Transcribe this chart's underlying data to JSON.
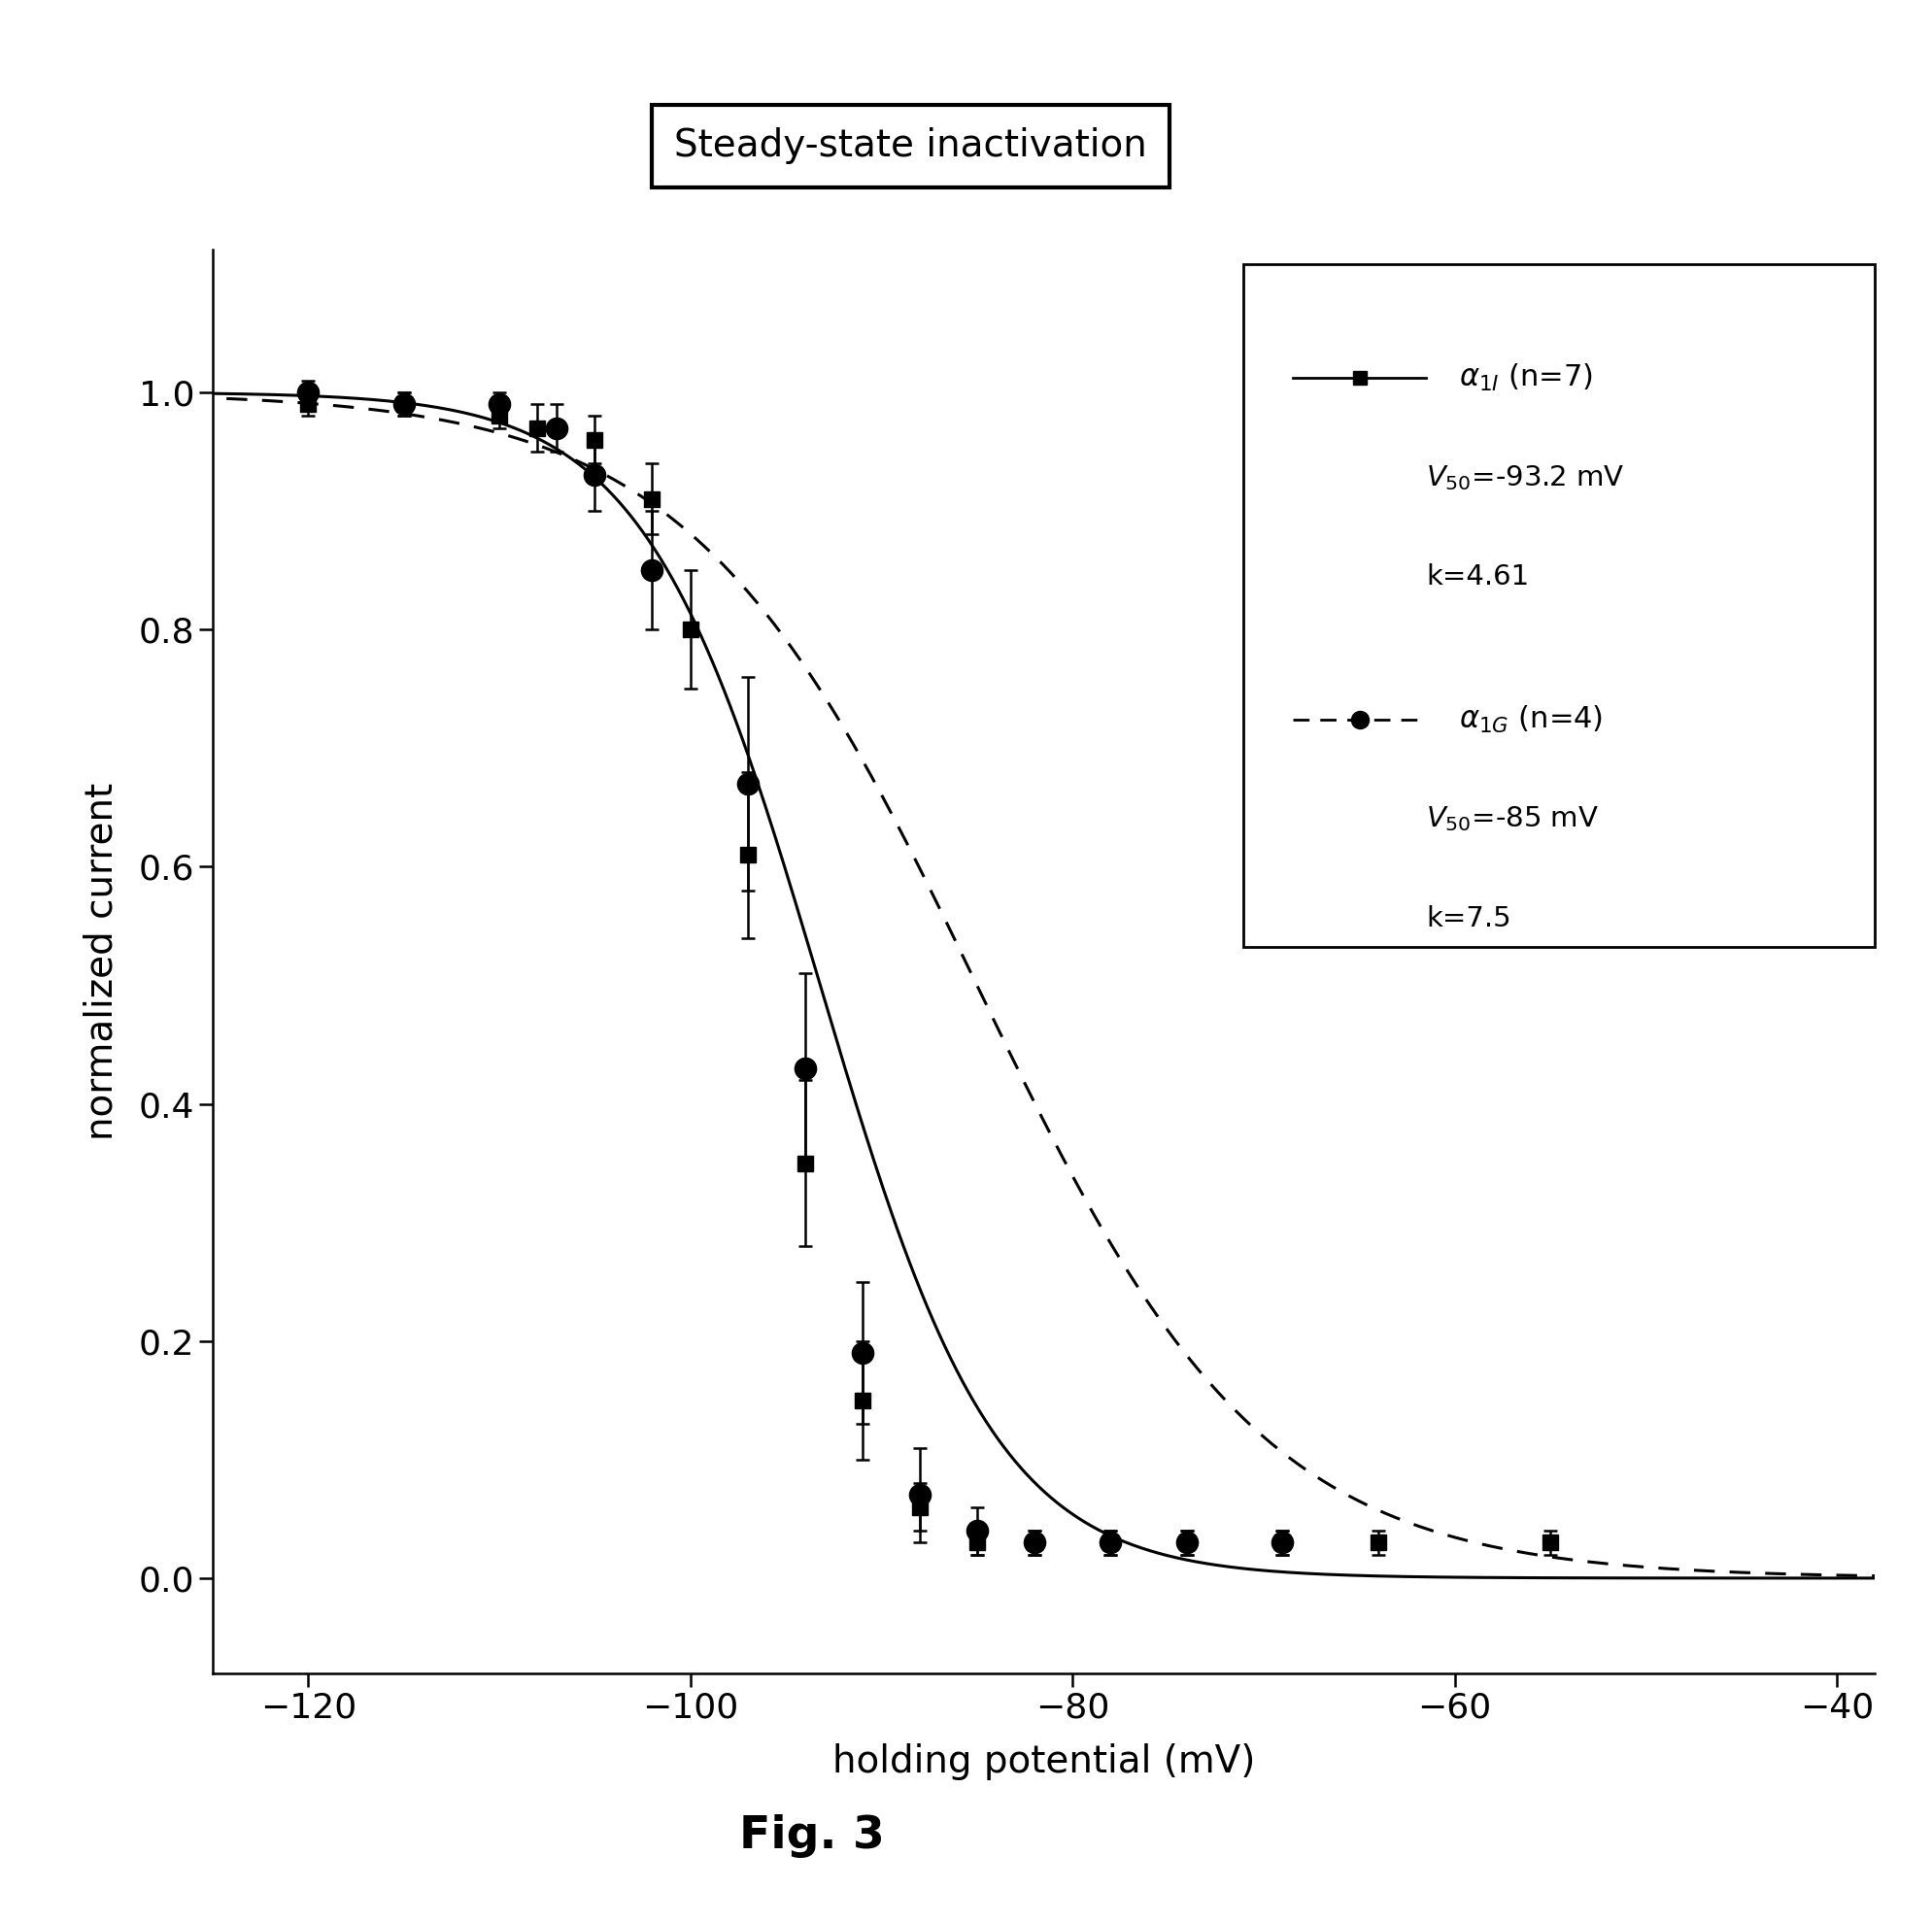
{
  "title": "Steady-state inactivation",
  "xlabel": "holding potential (mV)",
  "ylabel": "normalized current",
  "xlim": [
    -125,
    -38
  ],
  "ylim": [
    -0.08,
    1.12
  ],
  "xticks": [
    -120,
    -100,
    -80,
    -60,
    -40
  ],
  "yticks": [
    0.0,
    0.2,
    0.4,
    0.6,
    0.8,
    1.0
  ],
  "alpha1I": {
    "V50": -93.2,
    "k": 4.61,
    "x_data": [
      -120,
      -115,
      -110,
      -108,
      -105,
      -102,
      -100,
      -97,
      -94,
      -91,
      -88,
      -85,
      -82,
      -78,
      -74,
      -69,
      -64,
      -55
    ],
    "y_data": [
      0.99,
      0.99,
      0.98,
      0.97,
      0.96,
      0.91,
      0.8,
      0.61,
      0.35,
      0.15,
      0.06,
      0.03,
      0.03,
      0.03,
      0.03,
      0.03,
      0.03,
      0.03
    ],
    "y_err": [
      0.01,
      0.01,
      0.01,
      0.02,
      0.02,
      0.03,
      0.05,
      0.07,
      0.07,
      0.05,
      0.02,
      0.01,
      0.01,
      0.01,
      0.01,
      0.01,
      0.01,
      0.01
    ]
  },
  "alpha1G": {
    "V50": -85.0,
    "k": 7.5,
    "x_data": [
      -120,
      -115,
      -110,
      -107,
      -105,
      -102,
      -97,
      -94,
      -91,
      -88,
      -85,
      -82,
      -78,
      -74,
      -69
    ],
    "y_data": [
      1.0,
      0.99,
      0.99,
      0.97,
      0.93,
      0.85,
      0.67,
      0.43,
      0.19,
      0.07,
      0.04,
      0.03,
      0.03,
      0.03,
      0.03
    ],
    "y_err": [
      0.01,
      0.01,
      0.01,
      0.02,
      0.03,
      0.05,
      0.09,
      0.08,
      0.06,
      0.04,
      0.02,
      0.01,
      0.01,
      0.01,
      0.01
    ]
  },
  "fig_label": "Fig. 3",
  "background_color": "#ffffff"
}
